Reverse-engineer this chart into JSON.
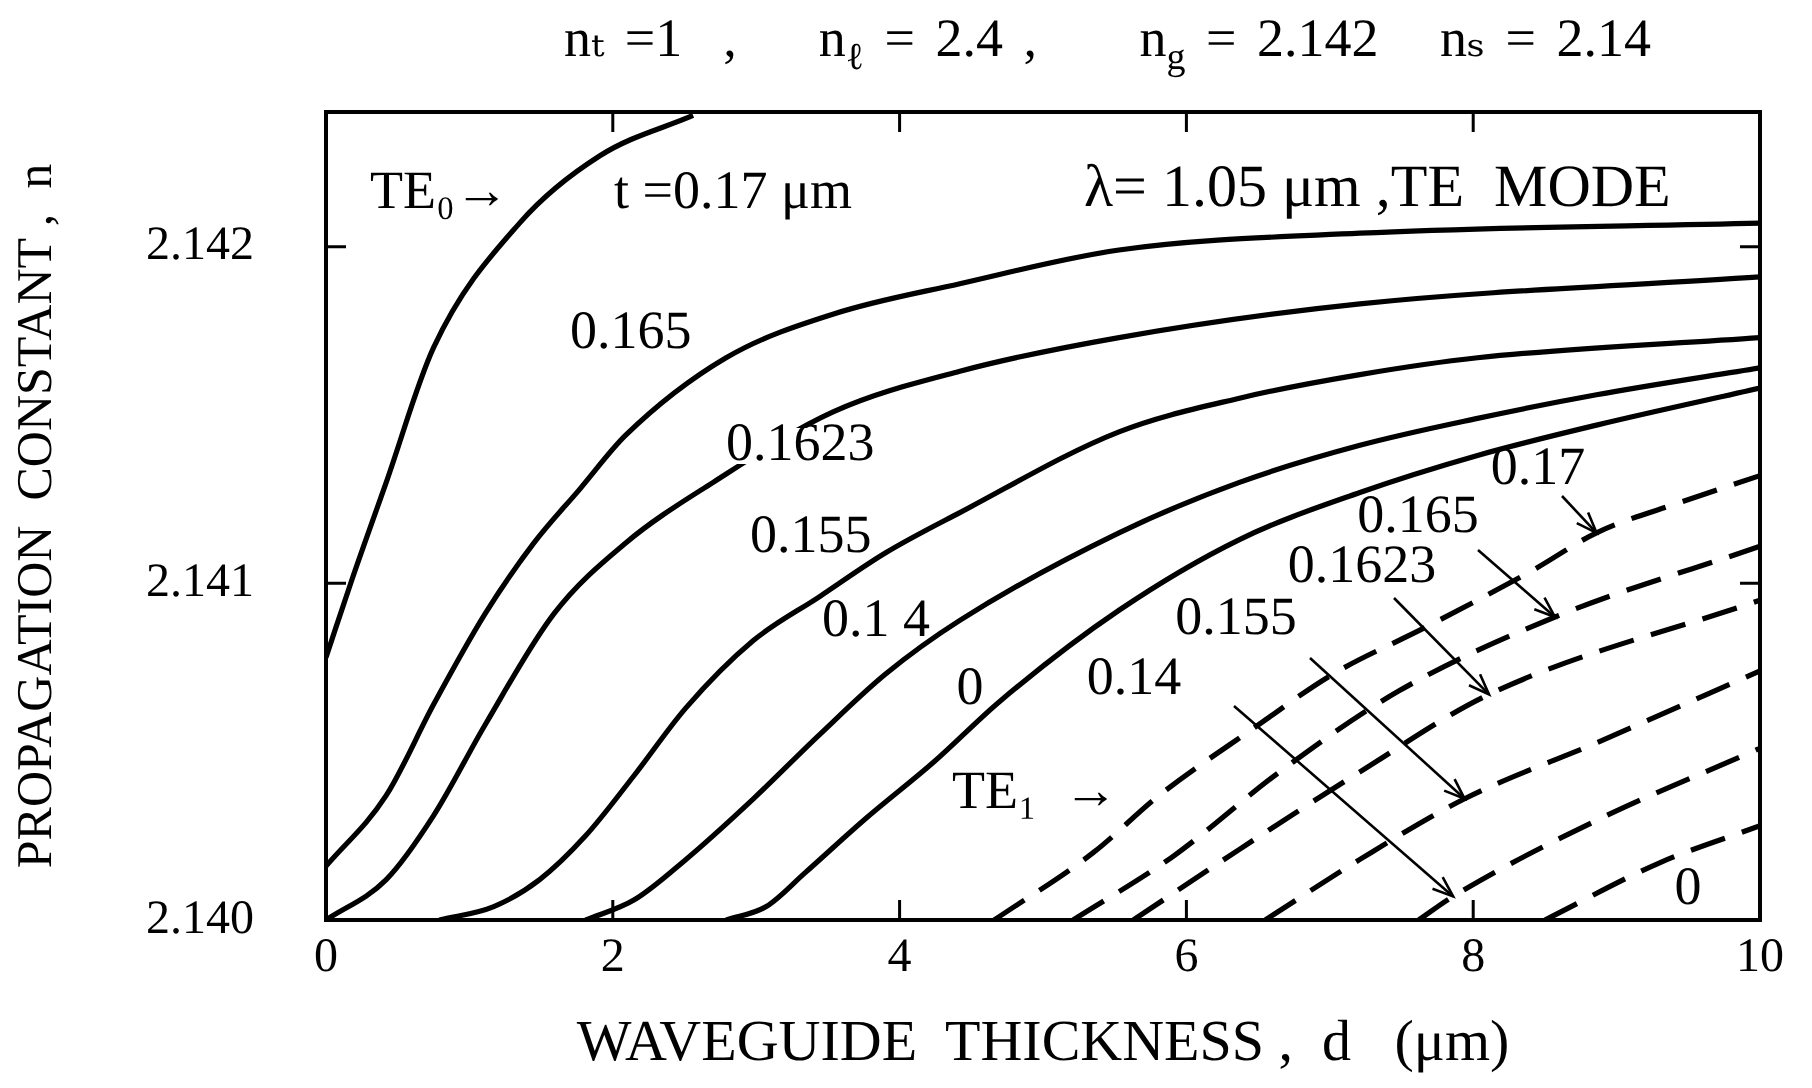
{
  "chart_data": {
    "type": "line",
    "title": "nₜ =1  ,    n$_{ℓ}$ = 2.4 ,     n$_{g}$ = 2.142   nₛ = 2.14",
    "xlabel": "WAVEGUIDE  THICKNESS ,  d   (μm)",
    "ylabel": "PROPAGATION  CONSTANT ,  n",
    "annotations": [
      "TE₀→",
      "t =0.17 μm",
      "λ= 1.05 μm ,TE  MODE",
      "TE₁  →",
      {
        "text": "0.165",
        "x": 2.56,
        "y": 2.1416
      },
      {
        "text": "0.1623",
        "x": 3.3,
        "y": 2.14145
      },
      {
        "text": "0.155",
        "x": 3.79,
        "y": 2.14106
      },
      {
        "text": "0.17",
        "x": 8.86,
        "y": 2.14115
      },
      {
        "text": "0.165",
        "x": 8.57,
        "y": 2.1409
      },
      {
        "text": "0.1623",
        "x": 8.11,
        "y": 2.14067
      },
      {
        "text": "0.155",
        "x": 7.94,
        "y": 2.14036
      },
      {
        "text": "0.14",
        "x": 7.86,
        "y": 2.14007
      }
    ],
    "xlim": [
      0,
      10
    ],
    "xticks": [
      0,
      2,
      4,
      6,
      8,
      10
    ],
    "ylim": [
      2.14,
      2.1424
    ],
    "yticks": [
      {
        "value": 2.14,
        "label": "2.140"
      },
      2.141,
      2.142
    ],
    "grid": false,
    "legend": false,
    "marker": "none",
    "series": [
      {
        "color": "#000000",
        "line_style": "solid",
        "x": [
          0,
          0.18,
          0.42,
          0.75,
          1.35,
          1.91,
          2.56
        ],
        "values": [
          2.14078,
          2.14101,
          2.1413,
          2.1417,
          2.14207,
          2.14227,
          2.14239
        ]
      },
      {
        "color": "#000000",
        "line_style": "solid",
        "x": [
          0,
          0.42,
          0.75,
          1.11,
          1.45,
          1.77,
          2.09,
          2.79,
          3.54,
          4.42,
          5.53,
          7.21,
          10
        ],
        "values": [
          2.14016,
          2.14037,
          2.14064,
          2.14091,
          2.14112,
          2.14128,
          2.14144,
          2.14167,
          2.1418,
          2.14189,
          2.14199,
          2.14204,
          2.14207
        ]
      },
      {
        "color": "#000000",
        "line_style": "solid",
        "x": [
          0,
          0.42,
          0.75,
          1.11,
          1.59,
          2.09,
          2.7,
          3.54,
          4.42,
          5.53,
          7.21,
          10
        ],
        "values": [
          2.14,
          2.14012,
          2.14031,
          2.14058,
          2.14091,
          2.14112,
          2.1413,
          2.14151,
          2.14163,
          2.14173,
          2.14183,
          2.14191
        ]
      },
      {
        "color": "#000000",
        "line_style": "solid",
        "x": [
          0.79,
          1.17,
          1.49,
          1.81,
          2.15,
          2.51,
          2.98,
          3.44,
          3.9,
          4.42,
          5.53,
          6.37,
          7.21,
          8.03,
          10
        ],
        "values": [
          2.14,
          2.14004,
          2.14012,
          2.14025,
          2.14043,
          2.14063,
          2.14083,
          2.14096,
          2.14109,
          2.14121,
          2.14145,
          2.14155,
          2.14162,
          2.14167,
          2.14173
        ]
      },
      {
        "name": "0.1 4",
        "color": "#000000",
        "line_style": "solid",
        "x": [
          1.81,
          2.15,
          2.51,
          2.98,
          3.44,
          3.9,
          4.42,
          5.53,
          6.37,
          7.21,
          8.03,
          8.86,
          10
        ],
        "values": [
          2.14,
          2.14006,
          2.14018,
          2.14036,
          2.14055,
          2.14073,
          2.14089,
          2.14115,
          2.1413,
          2.14141,
          2.14149,
          2.14156,
          2.14164
        ]
      },
      {
        "name": "0",
        "color": "#000000",
        "line_style": "solid",
        "x": [
          2.79,
          3.07,
          3.34,
          3.76,
          4.24,
          4.7,
          5.53,
          6.37,
          7.21,
          8.03,
          8.86,
          10
        ],
        "values": [
          2.14,
          2.14004,
          2.14014,
          2.1403,
          2.14047,
          2.14065,
          2.14092,
          2.14113,
          2.14127,
          2.14138,
          2.14147,
          2.14158
        ]
      },
      {
        "color": "#000000",
        "line_style": "dashed",
        "x": [
          4.66,
          5.35,
          5.81,
          6.47,
          7.02,
          7.67,
          8.42,
          8.86,
          9.44,
          10
        ],
        "values": [
          2.14,
          2.1402,
          2.14037,
          2.14057,
          2.14073,
          2.14087,
          2.14104,
          2.14115,
          2.14124,
          2.14132
        ]
      },
      {
        "color": "#000000",
        "line_style": "dashed",
        "x": [
          5.21,
          5.91,
          6.65,
          7.48,
          8.57,
          10
        ],
        "values": [
          2.14,
          2.14019,
          2.14044,
          2.14068,
          2.1409,
          2.14111
        ]
      },
      {
        "color": "#000000",
        "line_style": "dashed",
        "x": [
          5.63,
          6.37,
          7.21,
          8.11,
          10
        ],
        "values": [
          2.14,
          2.14021,
          2.14044,
          2.14067,
          2.14095
        ]
      },
      {
        "color": "#000000",
        "line_style": "dashed",
        "x": [
          6.55,
          7.21,
          7.94,
          8.88,
          10
        ],
        "values": [
          2.14,
          2.14018,
          2.14036,
          2.14053,
          2.14074
        ]
      },
      {
        "color": "#000000",
        "line_style": "dashed",
        "x": [
          7.62,
          7.86,
          8.88,
          10
        ],
        "values": [
          2.14,
          2.14007,
          2.1403,
          2.14051
        ]
      },
      {
        "name": "0",
        "color": "#000000",
        "line_style": "dashed",
        "x": [
          8.5,
          9.3,
          10
        ],
        "values": [
          2.14,
          2.14017,
          2.14028
        ]
      }
    ]
  }
}
